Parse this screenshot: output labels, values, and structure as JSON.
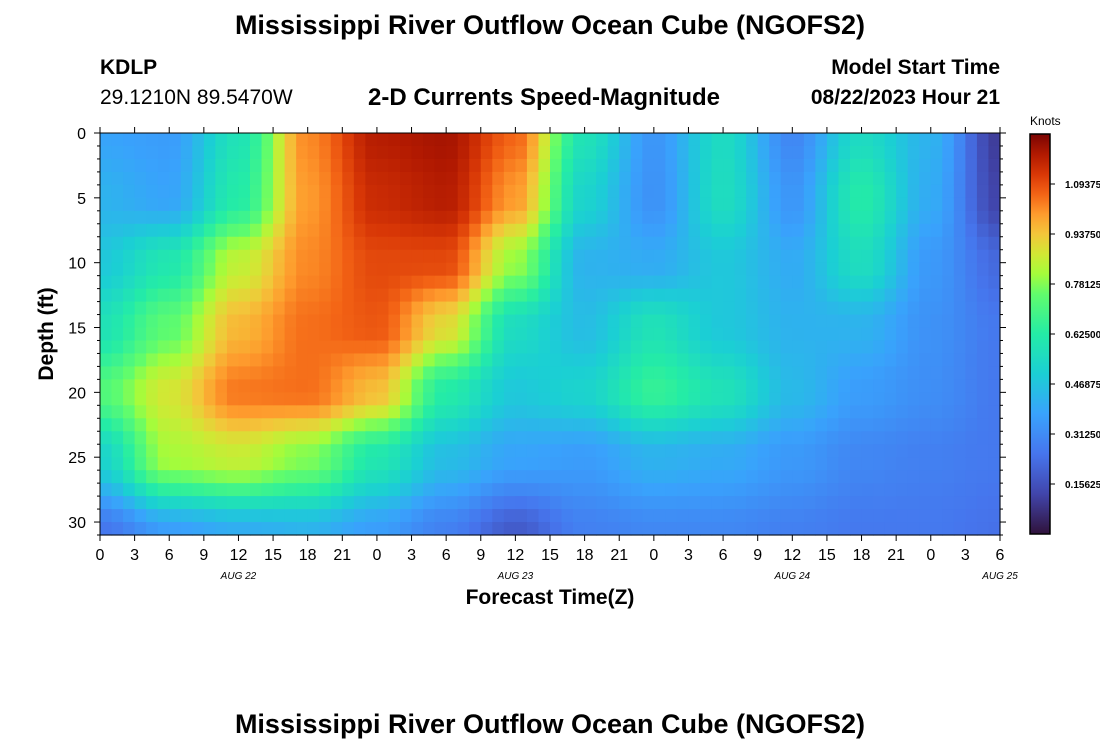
{
  "header": {
    "title": "Mississippi River Outflow Ocean Cube (NGOFS2)",
    "station": "KDLP",
    "coords": "29.1210N  89.5470W",
    "subtitle": "2-D Currents Speed-Magnitude",
    "model_start_label": "Model Start Time",
    "model_start_value": "08/22/2023 Hour 21"
  },
  "footer": {
    "title": "Mississippi River Outflow Ocean Cube (NGOFS2)"
  },
  "chart_data": {
    "type": "heatmap",
    "title": "2-D Currents Speed-Magnitude",
    "xlabel": "Forecast Time(Z)",
    "ylabel": "Depth (ft)",
    "x_tick_labels": [
      "0",
      "3",
      "6",
      "9",
      "12",
      "15",
      "18",
      "21",
      "0",
      "3",
      "6",
      "9",
      "12",
      "15",
      "18",
      "21",
      "0",
      "3",
      "6",
      "9",
      "12",
      "15",
      "18",
      "21",
      "0",
      "3",
      "6"
    ],
    "date_labels": [
      {
        "label": "AUG 22",
        "hour": 12
      },
      {
        "label": "AUG 23",
        "hour": 36
      },
      {
        "label": "AUG 24",
        "hour": 60
      },
      {
        "label": "AUG 25",
        "hour": 78
      }
    ],
    "xlim_hours": [
      0,
      78
    ],
    "y_ticks": [
      0,
      5,
      10,
      15,
      20,
      25,
      30
    ],
    "ylim": [
      0,
      31
    ],
    "colorbar": {
      "unit": "Knots",
      "ticks": [
        "1.09375",
        "0.93750",
        "0.78125",
        "0.62500",
        "0.46875",
        "0.31250",
        "0.15625"
      ],
      "range": [
        0.0,
        1.25
      ]
    },
    "grid_hours": [
      0,
      6,
      12,
      18,
      24,
      30,
      36,
      42,
      48,
      54,
      60,
      66,
      72,
      78
    ],
    "grid_depths": [
      0,
      5,
      10,
      15,
      20,
      25,
      31
    ],
    "speed_knots": [
      [
        0.38,
        0.36,
        0.58,
        1.02,
        1.18,
        1.2,
        1.06,
        0.58,
        0.34,
        0.55,
        0.3,
        0.55,
        0.42,
        0.1
      ],
      [
        0.42,
        0.38,
        0.62,
        1.0,
        1.15,
        1.18,
        1.0,
        0.52,
        0.33,
        0.56,
        0.34,
        0.62,
        0.4,
        0.12
      ],
      [
        0.48,
        0.6,
        0.85,
        1.02,
        1.1,
        1.1,
        0.8,
        0.42,
        0.4,
        0.48,
        0.4,
        0.56,
        0.35,
        0.22
      ],
      [
        0.58,
        0.74,
        0.96,
        1.05,
        1.08,
        0.9,
        0.55,
        0.45,
        0.58,
        0.48,
        0.42,
        0.42,
        0.33,
        0.26
      ],
      [
        0.72,
        0.88,
        1.04,
        1.05,
        0.95,
        0.62,
        0.48,
        0.52,
        0.66,
        0.58,
        0.44,
        0.36,
        0.32,
        0.26
      ],
      [
        0.52,
        0.82,
        0.86,
        0.78,
        0.6,
        0.45,
        0.38,
        0.36,
        0.42,
        0.4,
        0.35,
        0.3,
        0.28,
        0.26
      ],
      [
        0.25,
        0.36,
        0.4,
        0.42,
        0.36,
        0.28,
        0.18,
        0.28,
        0.3,
        0.3,
        0.28,
        0.26,
        0.26,
        0.24
      ]
    ]
  }
}
